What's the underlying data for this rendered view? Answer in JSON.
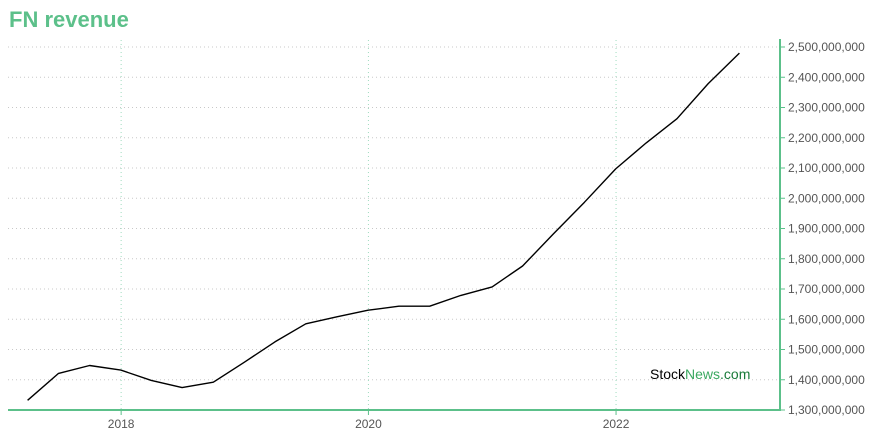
{
  "chart_data": {
    "type": "line",
    "title": "FN revenue",
    "xlabel": "",
    "ylabel": "",
    "x": [
      "2017-03-31",
      "2017-06-30",
      "2017-09-30",
      "2017-12-31",
      "2018-03-31",
      "2018-06-30",
      "2018-09-30",
      "2018-12-31",
      "2019-03-31",
      "2019-06-30",
      "2019-09-30",
      "2019-12-31",
      "2020-03-31",
      "2020-06-30",
      "2020-09-30",
      "2020-12-31",
      "2021-03-31",
      "2021-06-30",
      "2021-09-30",
      "2021-12-31",
      "2022-03-31",
      "2022-06-30",
      "2022-09-30",
      "2022-12-31"
    ],
    "values": [
      1332000000,
      1421000000,
      1447000000,
      1432000000,
      1398000000,
      1374000000,
      1392000000,
      1458000000,
      1525000000,
      1585000000,
      1608000000,
      1630000000,
      1643000000,
      1643000000,
      1679000000,
      1707000000,
      1776000000,
      1882000000,
      1987000000,
      2097000000,
      2183000000,
      2263000000,
      2379000000,
      2480000000
    ],
    "xlim": [
      "2017-02-01",
      "2023-04-30"
    ],
    "ylim": [
      1300000000,
      2500000000
    ],
    "xticks": [
      {
        "date": "2018-01-01",
        "label": "2018"
      },
      {
        "date": "2020-01-01",
        "label": "2020"
      },
      {
        "date": "2022-01-01",
        "label": "2022"
      }
    ],
    "yticks": [
      {
        "value": 1300000000,
        "label": "1,300,000,000"
      },
      {
        "value": 1400000000,
        "label": "1,400,000,000"
      },
      {
        "value": 1500000000,
        "label": "1,500,000,000"
      },
      {
        "value": 1600000000,
        "label": "1,600,000,000"
      },
      {
        "value": 1700000000,
        "label": "1,700,000,000"
      },
      {
        "value": 1800000000,
        "label": "1,800,000,000"
      },
      {
        "value": 1900000000,
        "label": "1,900,000,000"
      },
      {
        "value": 2000000000,
        "label": "2,000,000,000"
      },
      {
        "value": 2100000000,
        "label": "2,100,000,000"
      },
      {
        "value": 2200000000,
        "label": "2,200,000,000"
      },
      {
        "value": 2300000000,
        "label": "2,300,000,000"
      },
      {
        "value": 2400000000,
        "label": "2,400,000,000"
      },
      {
        "value": 2500000000,
        "label": "2,500,000,000"
      }
    ],
    "grid": true,
    "y_axis_position": "right",
    "colors": {
      "line": "#000000",
      "axis": "#5cc08a",
      "title": "#5cc08a",
      "grid_horizontal": "#c8c8c8",
      "grid_vertical": "#9fdcc0"
    }
  },
  "watermark": {
    "part1": "Stock",
    "part2": "News",
    "part3": ".com",
    "color1": "#000000",
    "color2": "#3aa860",
    "color3": "#1a7a3a"
  }
}
